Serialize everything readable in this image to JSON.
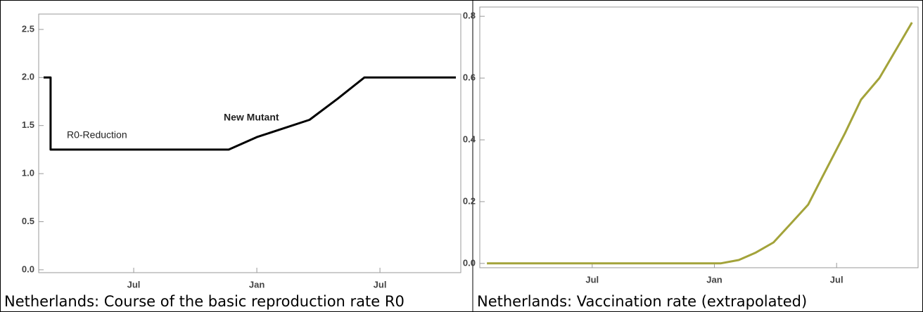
{
  "chart_data": [
    {
      "type": "line",
      "caption": "Netherlands: Course of the basic reproduction rate R0",
      "x": [
        1.61,
        1.95,
        1.95,
        10.63,
        12,
        14.57,
        15.94,
        17.24,
        21.7
      ],
      "values": [
        2.0,
        2.0,
        1.25,
        1.25,
        1.38,
        1.56,
        1.78,
        2.0,
        2.0
      ],
      "color": "#000000",
      "xlim": [
        1.37,
        21.94
      ],
      "ylim": [
        -0.03,
        2.66
      ],
      "xticks": [
        {
          "value": 6,
          "label": "Jul"
        },
        {
          "value": 12,
          "label": "Jan"
        },
        {
          "value": 18,
          "label": "Jul"
        }
      ],
      "yticks": [
        {
          "value": 0,
          "label": "0.0"
        },
        0.5,
        {
          "value": 1,
          "label": "1.0"
        },
        1.5,
        {
          "value": 2,
          "label": "2.0"
        },
        2.5
      ],
      "annotations": [
        "R0-Reduction",
        "New Mutant"
      ],
      "grid": false
    },
    {
      "type": "line",
      "caption": "Netherlands: Vaccination rate (extrapolated)",
      "x": [
        0.83,
        12.3,
        13.2,
        14.0,
        14.9,
        15.7,
        16.6,
        17.3,
        18.4,
        19.2,
        20.1,
        20.9,
        21.7
      ],
      "values": [
        0,
        0,
        0.011,
        0.034,
        0.068,
        0.125,
        0.19,
        0.28,
        0.42,
        0.53,
        0.6,
        0.69,
        0.78
      ],
      "color": "#a3a33a",
      "xlim": [
        0.48,
        22.0
      ],
      "ylim": [
        -0.014,
        0.83
      ],
      "xticks": [
        {
          "value": 6,
          "label": "Jul"
        },
        {
          "value": 12,
          "label": "Jan"
        },
        {
          "value": 18,
          "label": "Jul"
        }
      ],
      "yticks": [
        {
          "value": 0,
          "label": "0.0"
        },
        0.2,
        0.4,
        0.6,
        0.8
      ],
      "grid": false
    }
  ]
}
